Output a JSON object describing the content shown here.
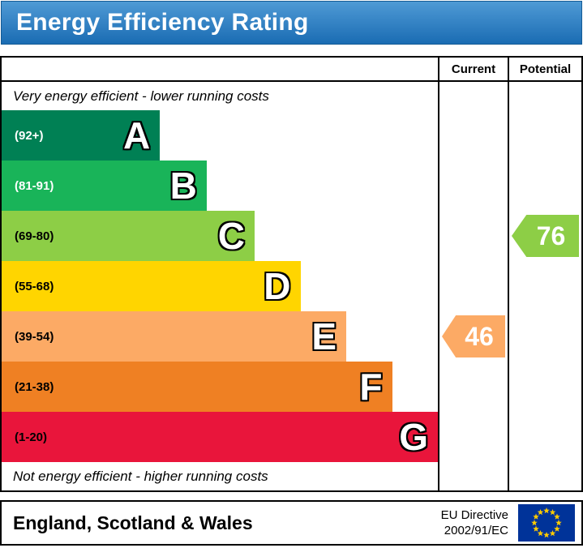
{
  "title": "Energy Efficiency Rating",
  "columns": {
    "current": "Current",
    "potential": "Potential"
  },
  "captions": {
    "top": "Very energy efficient - lower running costs",
    "bottom": "Not energy efficient - higher running costs"
  },
  "bands": [
    {
      "letter": "A",
      "range": "(92+)",
      "color": "#008054",
      "text_color": "#ffffff",
      "width_pct": 36.3
    },
    {
      "letter": "B",
      "range": "(81-91)",
      "color": "#19b459",
      "text_color": "#ffffff",
      "width_pct": 47.0
    },
    {
      "letter": "C",
      "range": "(69-80)",
      "color": "#8dce46",
      "text_color": "#000000",
      "width_pct": 58.0
    },
    {
      "letter": "D",
      "range": "(55-68)",
      "color": "#ffd500",
      "text_color": "#000000",
      "width_pct": 68.5
    },
    {
      "letter": "E",
      "range": "(39-54)",
      "color": "#fcaa65",
      "text_color": "#000000",
      "width_pct": 79.0
    },
    {
      "letter": "F",
      "range": "(21-38)",
      "color": "#ef8023",
      "text_color": "#000000",
      "width_pct": 89.5
    },
    {
      "letter": "G",
      "range": "(1-20)",
      "color": "#e9153b",
      "text_color": "#000000",
      "width_pct": 100
    }
  ],
  "ratings": {
    "current": {
      "value": "46",
      "band": "E",
      "color": "#fcaa65"
    },
    "potential": {
      "value": "76",
      "band": "C",
      "color": "#8dce46"
    }
  },
  "footer": {
    "region": "England, Scotland & Wales",
    "directive_line1": "EU Directive",
    "directive_line2": "2002/91/EC"
  },
  "icons": {
    "eu_flag": "circle-of-12-stars"
  },
  "colors": {
    "banner_top": "#4f9ad5",
    "banner_bottom": "#1a6cb3",
    "flag_blue": "#003399",
    "flag_star_yellow": "#ffcc00"
  },
  "chart_data": {
    "type": "bar",
    "orientation": "horizontal",
    "title": "Energy Efficiency Rating",
    "categories": [
      "A",
      "B",
      "C",
      "D",
      "E",
      "F",
      "G"
    ],
    "band_score_ranges": [
      "92+",
      "81-91",
      "69-80",
      "55-68",
      "39-54",
      "21-38",
      "1-20"
    ],
    "bar_lengths_pct": [
      36.3,
      47.0,
      58.0,
      68.5,
      79.0,
      89.5,
      100
    ],
    "bar_colors": [
      "#008054",
      "#19b459",
      "#8dce46",
      "#ffd500",
      "#fcaa65",
      "#ef8023",
      "#e9153b"
    ],
    "scale": [
      1,
      100
    ],
    "annotations": [
      {
        "label": "Current",
        "value": 46,
        "band": "E"
      },
      {
        "label": "Potential",
        "value": 76,
        "band": "C"
      }
    ],
    "top_caption": "Very energy efficient - lower running costs",
    "bottom_caption": "Not energy efficient - higher running costs",
    "legend_position": "none",
    "grid": false
  }
}
